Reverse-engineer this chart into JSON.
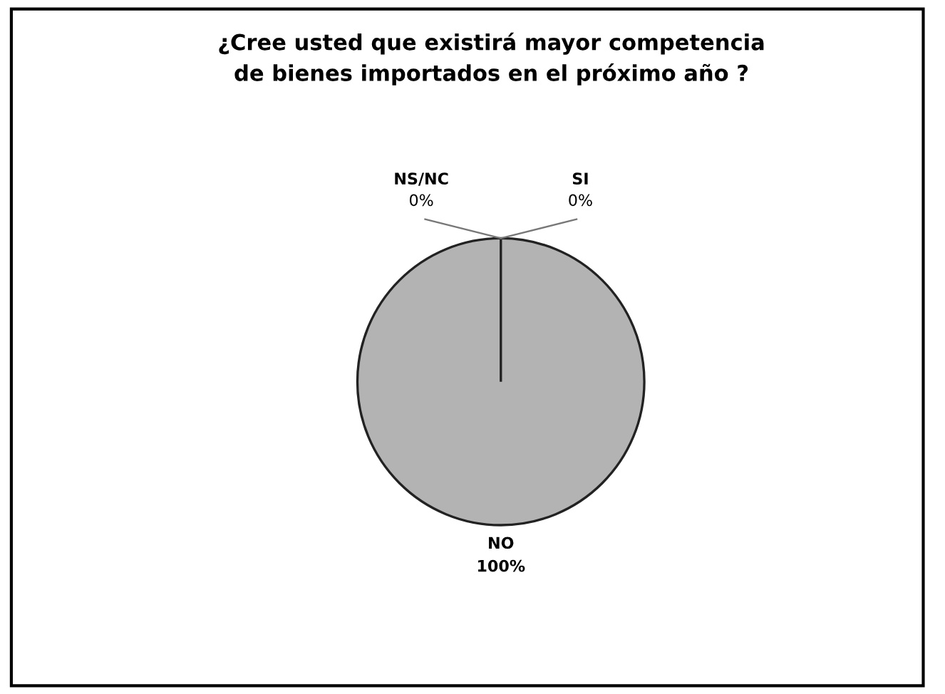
{
  "chart_data": {
    "type": "pie",
    "title": "¿Cree usted que existirá mayor competencia\nde bienes importados en el próximo año ?",
    "categories": [
      "SI",
      "NO",
      "NS/NC"
    ],
    "values": [
      0,
      100,
      0
    ],
    "value_labels": [
      "0%",
      "100%",
      "0%"
    ],
    "colors": [
      "#a8a8a8",
      "#b3b3b3",
      "#a0a0a0"
    ]
  }
}
